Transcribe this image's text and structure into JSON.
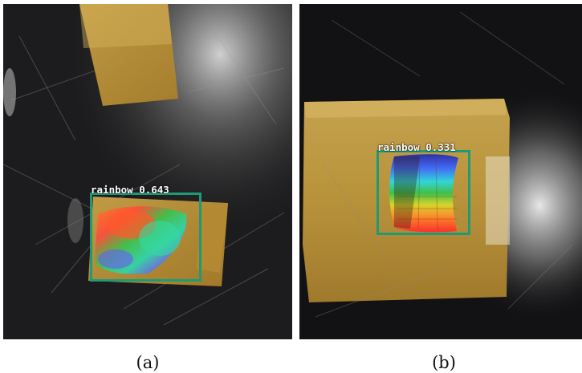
{
  "colors": {
    "detection_box": "#1f9a76",
    "label_text": "#ffffff"
  },
  "panels": [
    {
      "caption": "(a)",
      "detection": {
        "label": "rainbow",
        "score": "0.643",
        "text": "rainbow 0.643"
      }
    },
    {
      "caption": "(b)",
      "detection": {
        "label": "rainbow",
        "score": "0.331",
        "text": "rainbow 0.331"
      }
    }
  ]
}
